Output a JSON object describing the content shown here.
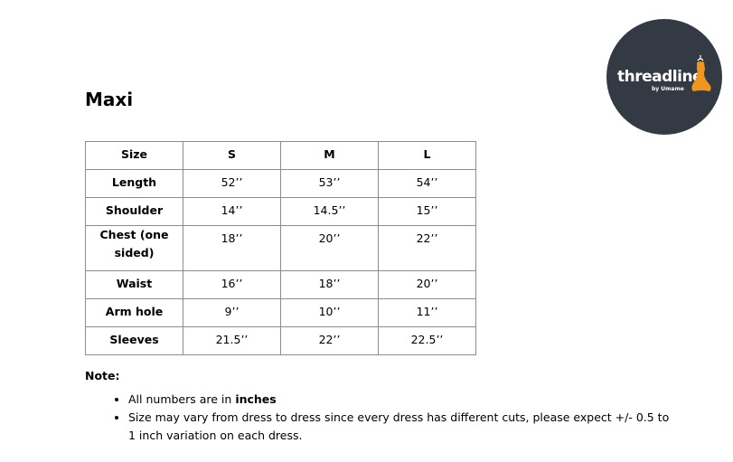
{
  "title": "Maxi",
  "logo": {
    "brand": "threadline",
    "tagline": "by Umame",
    "background": "#343a44",
    "accent": "#f0961e"
  },
  "table": {
    "headers": [
      "Size",
      "S",
      "M",
      "L"
    ],
    "rows": [
      [
        "Length",
        "52’’",
        "53’’",
        "54’’"
      ],
      [
        "Shoulder",
        "14’’",
        "14.5’’",
        "15’’"
      ],
      [
        "Chest (one sided)",
        "18’’",
        "20’’",
        "22’’"
      ],
      [
        "Waist",
        "16’’",
        "18’’",
        "20’’"
      ],
      [
        "Arm hole",
        "9’’",
        "10’’",
        "11’’"
      ],
      [
        "Sleeves",
        "21.5’’",
        "22’’",
        "22.5’’"
      ]
    ]
  },
  "note": {
    "label": "Note:",
    "items": [
      {
        "text": "All numbers are in ",
        "bold": "inches"
      },
      {
        "text": "Size may vary from dress to dress since every dress has different cuts, please expect +/- 0.5 to 1 inch variation on each dress."
      }
    ]
  }
}
